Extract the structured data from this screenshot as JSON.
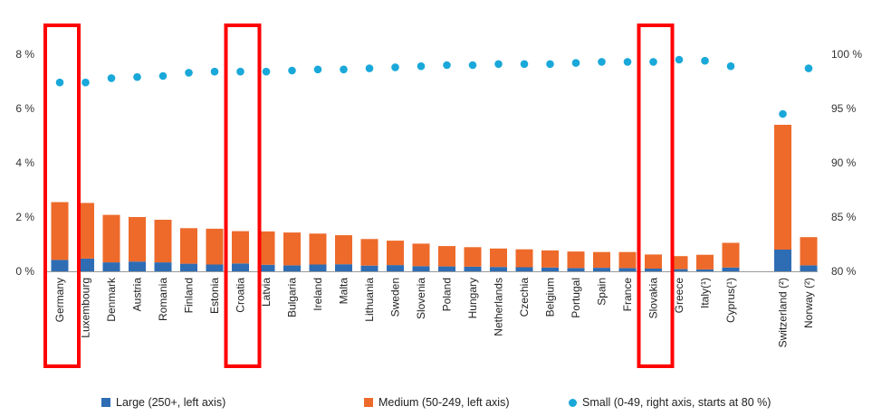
{
  "chart_data": {
    "type": "bar",
    "stacked": true,
    "categories": [
      "Germany",
      "Luxembourg",
      "Denmark",
      "Austria",
      "Romania",
      "Finland",
      "Estonia",
      "Croatia",
      "Latvia",
      "Bulgaria",
      "Ireland",
      "Malta",
      "Lithuania",
      "Sweden",
      "Slovenia",
      "Poland",
      "Hungary",
      "Netherlands",
      "Czechia",
      "Belgium",
      "Portugal",
      "Spain",
      "France",
      "Slovakia",
      "Greece",
      "Italy(¹)",
      "Cyprus(¹)",
      "Switzerland (²)",
      "Norway (²)"
    ],
    "gap_before_index": 27,
    "series": [
      {
        "name": "Large (250+, left axis)",
        "axis": "left",
        "kind": "bar",
        "values": [
          0.42,
          0.47,
          0.33,
          0.36,
          0.33,
          0.28,
          0.25,
          0.29,
          0.24,
          0.22,
          0.25,
          0.26,
          0.21,
          0.23,
          0.19,
          0.18,
          0.17,
          0.16,
          0.15,
          0.14,
          0.12,
          0.13,
          0.12,
          0.1,
          0.08,
          0.07,
          0.14,
          0.8,
          0.22
        ]
      },
      {
        "name": "Medium (50-249, left axis)",
        "axis": "left",
        "kind": "bar",
        "values": [
          2.13,
          2.05,
          1.75,
          1.64,
          1.57,
          1.31,
          1.32,
          1.19,
          1.23,
          1.21,
          1.14,
          1.07,
          0.98,
          0.9,
          0.83,
          0.75,
          0.72,
          0.68,
          0.66,
          0.63,
          0.61,
          0.58,
          0.59,
          0.52,
          0.48,
          0.54,
          0.91,
          4.6,
          1.04
        ]
      },
      {
        "name": "Small (0-49, right axis, starts at 80 %)",
        "axis": "right",
        "kind": "scatter",
        "values": [
          97.4,
          97.4,
          97.8,
          97.9,
          98.0,
          98.3,
          98.4,
          98.4,
          98.4,
          98.5,
          98.6,
          98.6,
          98.7,
          98.8,
          98.9,
          99.0,
          99.0,
          99.1,
          99.1,
          99.1,
          99.2,
          99.3,
          99.3,
          99.3,
          99.5,
          99.4,
          98.9,
          94.5,
          98.7
        ]
      }
    ],
    "left_axis": {
      "min": 0,
      "max": 8,
      "ticks": [
        "0 %",
        "2 %",
        "4 %",
        "6 %",
        "8 %"
      ]
    },
    "right_axis": {
      "min": 80,
      "max": 100,
      "ticks": [
        "80 %",
        "85 %",
        "90 %",
        "95 %",
        "100 %"
      ]
    },
    "colors": {
      "large": "#2e6db4",
      "medium": "#ee6a2a",
      "small": "#19a8d9",
      "highlight": "#ff0000"
    },
    "highlighted": [
      "Germany",
      "Croatia",
      "Slovakia"
    ],
    "legend_position": "bottom"
  },
  "legend": {
    "large": "Large (250+, left axis)",
    "medium": "Medium (50-249, left axis)",
    "small": "Small (0-49, right axis, starts at 80 %)"
  }
}
